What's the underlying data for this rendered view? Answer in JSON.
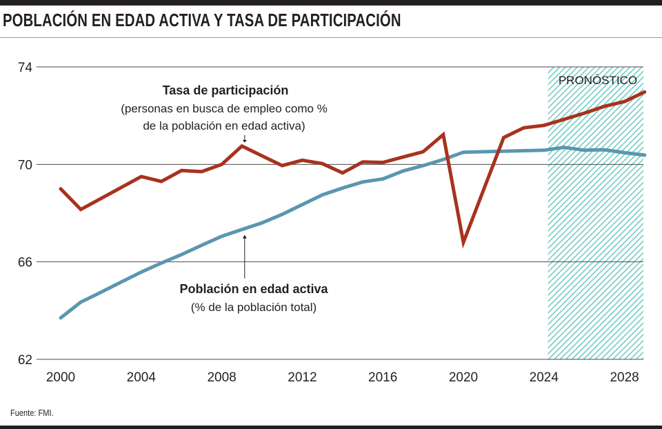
{
  "title": "POBLACIÓN EN EDAD ACTIVA Y TASA DE PARTICIPACIÓN",
  "source": "Fuente: FMI.",
  "colors": {
    "participation": "#a8321e",
    "working_age": "#5a96b0",
    "forecast_hatch": "#6cc9bf",
    "grid": "#4a4a4a",
    "text": "#231f20"
  },
  "chart_data": {
    "type": "line",
    "title": "POBLACIÓN EN EDAD ACTIVA Y TASA DE PARTICIPACIÓN",
    "xlabel": "",
    "ylabel": "",
    "x": [
      2000,
      2001,
      2002,
      2003,
      2004,
      2005,
      2006,
      2007,
      2008,
      2009,
      2010,
      2011,
      2012,
      2013,
      2014,
      2015,
      2016,
      2017,
      2018,
      2019,
      2020,
      2021,
      2022,
      2023,
      2024,
      2025,
      2026,
      2027,
      2028,
      2029
    ],
    "xlim": [
      2000,
      2029
    ],
    "ylim": [
      62,
      74
    ],
    "x_ticks": [
      2000,
      2004,
      2008,
      2012,
      2016,
      2020,
      2024,
      2028
    ],
    "x_tick_labels": [
      "2000",
      "2004",
      "2008",
      "2012",
      "2016",
      "2020",
      "2024",
      "2028"
    ],
    "y_ticks": [
      62,
      66,
      70,
      74
    ],
    "y_tick_labels": [
      "62",
      "66",
      "70",
      "74"
    ],
    "grid": "horizontal",
    "forecast_region": {
      "start": 2024.2,
      "end": 2029,
      "label": "PRONÓSTICO"
    },
    "series": [
      {
        "name": "Tasa de participación",
        "subtitle_line1": "(personas en busca de empleo como %",
        "subtitle_line2": "de la población en edad activa)",
        "values": [
          69.0,
          68.15,
          68.6,
          69.05,
          69.5,
          69.3,
          69.75,
          69.7,
          70.0,
          70.75,
          70.35,
          69.95,
          70.17,
          70.03,
          69.65,
          70.1,
          70.08,
          70.3,
          70.52,
          71.22,
          66.8,
          68.95,
          71.1,
          71.5,
          71.6,
          71.85,
          72.1,
          72.38,
          72.58,
          72.97
        ]
      },
      {
        "name": "Población en edad activa",
        "subtitle_line1": "(% de la población total)",
        "values": [
          63.7,
          64.35,
          64.75,
          65.17,
          65.58,
          65.95,
          66.3,
          66.68,
          67.05,
          67.33,
          67.6,
          67.95,
          68.35,
          68.75,
          69.03,
          69.28,
          69.4,
          69.73,
          69.95,
          70.2,
          70.5,
          70.52,
          70.54,
          70.56,
          70.58,
          70.7,
          70.58,
          70.6,
          70.48,
          70.38
        ]
      }
    ],
    "annotations": [
      {
        "series": "Tasa de participación",
        "x": 2009,
        "arrow": "down"
      },
      {
        "series": "Población en edad activa",
        "x": 2009,
        "arrow": "up"
      }
    ]
  }
}
